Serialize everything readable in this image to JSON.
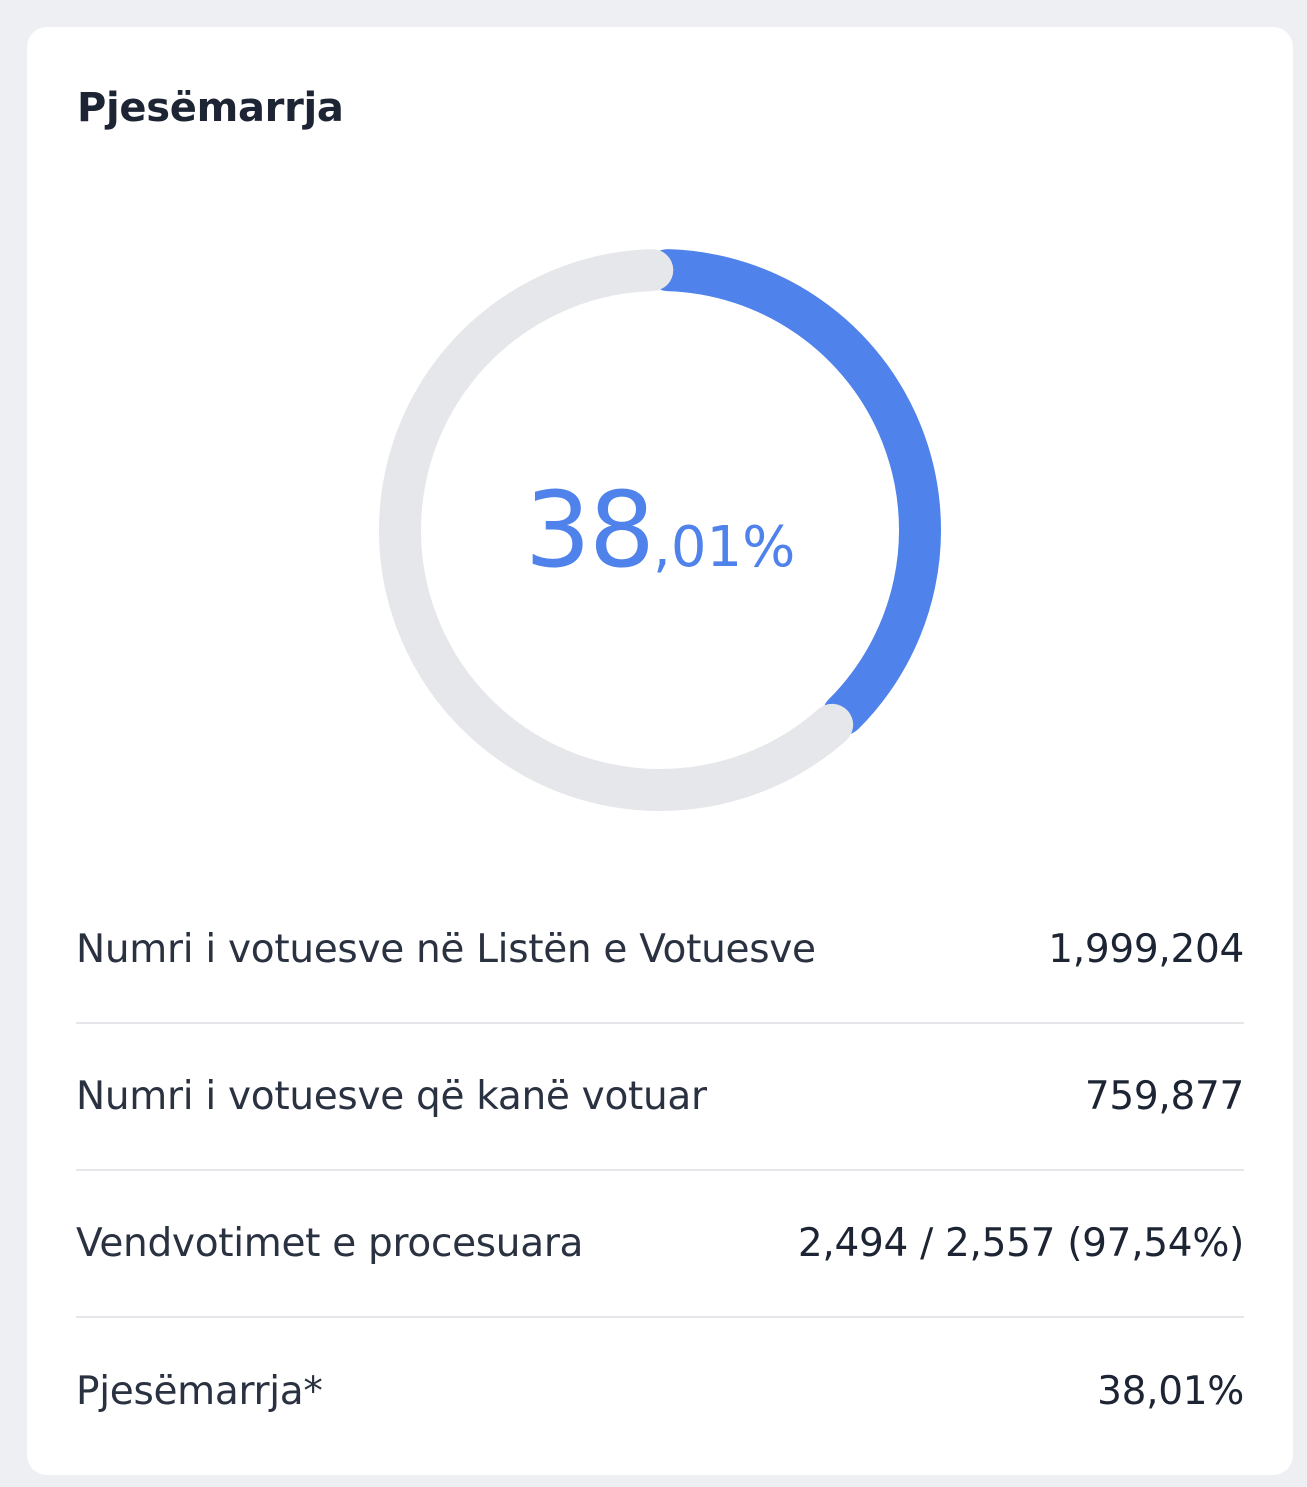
{
  "card": {
    "title": "Pjesëmarrja"
  },
  "chart_data": {
    "type": "pie",
    "variant": "donut",
    "value_percent": 38.01,
    "center_label_integer": "38",
    "center_label_decimal": ",01%",
    "slices": [
      {
        "value": 38.01,
        "color": "#4f82ea"
      },
      {
        "value": 61.99,
        "color": "#e6e7ea"
      }
    ]
  },
  "stats": [
    {
      "label": "Numri i votuesve në Listën e Votuesve",
      "value": "1,999,204"
    },
    {
      "label": "Numri i votuesve që kanë votuar",
      "value": "759,877"
    },
    {
      "label": "Vendvotimet e procesuara",
      "value": "2,494 / 2,557 (97,54%)"
    },
    {
      "label": "Pjesëmarrja*",
      "value": "38,01%"
    }
  ],
  "colors": {
    "accent": "#4f82ea",
    "track": "#e6e7ea",
    "text": "#1d2433"
  }
}
